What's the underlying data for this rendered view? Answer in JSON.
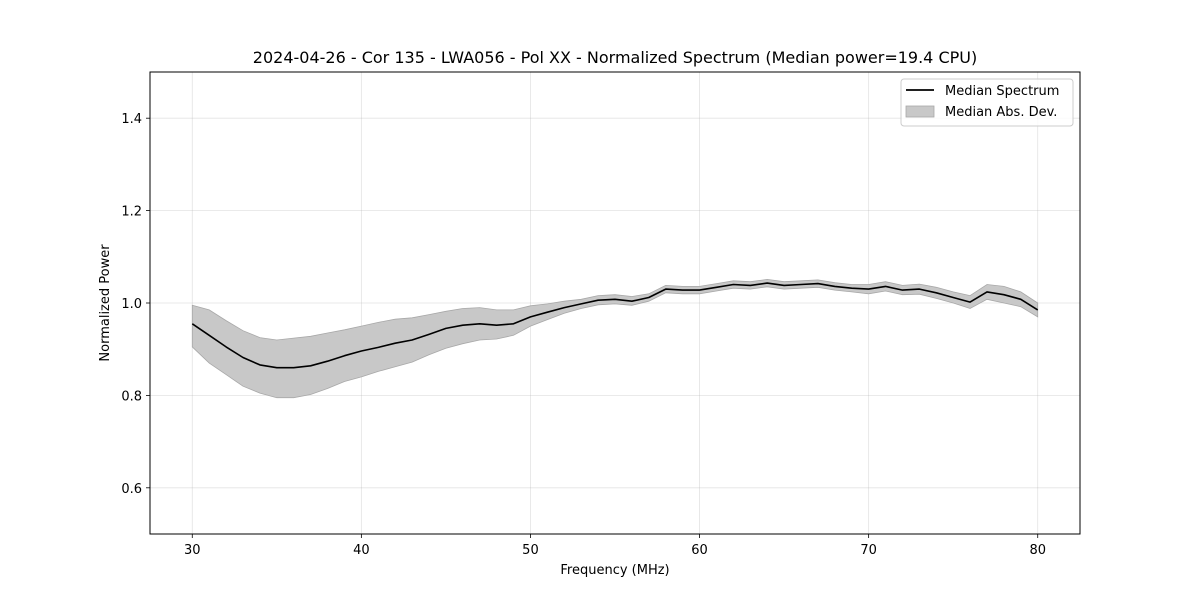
{
  "chart_data": {
    "type": "line",
    "title": "2024-04-26 - Cor 135 - LWA056 - Pol XX - Normalized Spectrum (Median power=19.4 CPU)",
    "xlabel": "Frequency (MHz)",
    "ylabel": "Normalized Power",
    "xlim": [
      27.5,
      82.5
    ],
    "ylim": [
      0.5,
      1.5
    ],
    "xticks": [
      30,
      40,
      50,
      60,
      70,
      80
    ],
    "yticks": [
      0.6,
      0.8,
      1.0,
      1.2,
      1.4
    ],
    "xtick_labels": [
      "30",
      "40",
      "50",
      "60",
      "70",
      "80"
    ],
    "ytick_labels": [
      "0.6",
      "0.8",
      "1.0",
      "1.2",
      "1.4"
    ],
    "grid": true,
    "legend_position": "top-right",
    "series": [
      {
        "name": "Median Spectrum",
        "color": "#000000",
        "x": [
          30,
          31,
          32,
          33,
          34,
          35,
          36,
          37,
          38,
          39,
          40,
          41,
          42,
          43,
          44,
          45,
          46,
          47,
          48,
          49,
          50,
          51,
          52,
          53,
          54,
          55,
          56,
          57,
          58,
          59,
          60,
          61,
          62,
          63,
          64,
          65,
          66,
          67,
          68,
          69,
          70,
          71,
          72,
          73,
          74,
          75,
          76,
          77,
          78,
          79,
          80
        ],
        "y": [
          0.955,
          0.93,
          0.905,
          0.882,
          0.866,
          0.86,
          0.86,
          0.864,
          0.874,
          0.886,
          0.896,
          0.904,
          0.913,
          0.92,
          0.932,
          0.945,
          0.952,
          0.955,
          0.952,
          0.955,
          0.97,
          0.98,
          0.99,
          0.998,
          1.006,
          1.008,
          1.004,
          1.012,
          1.03,
          1.028,
          1.028,
          1.034,
          1.04,
          1.038,
          1.043,
          1.038,
          1.04,
          1.042,
          1.036,
          1.032,
          1.03,
          1.036,
          1.028,
          1.03,
          1.022,
          1.012,
          1.002,
          1.024,
          1.018,
          1.008,
          0.985
        ]
      }
    ],
    "band": {
      "name": "Median Abs. Dev.",
      "color": "#c8c8c8",
      "x": [
        30,
        31,
        32,
        33,
        34,
        35,
        36,
        37,
        38,
        39,
        40,
        41,
        42,
        43,
        44,
        45,
        46,
        47,
        48,
        49,
        50,
        51,
        52,
        53,
        54,
        55,
        56,
        57,
        58,
        59,
        60,
        61,
        62,
        63,
        64,
        65,
        66,
        67,
        68,
        69,
        70,
        71,
        72,
        73,
        74,
        75,
        76,
        77,
        78,
        79,
        80
      ],
      "lower": [
        0.905,
        0.87,
        0.845,
        0.82,
        0.805,
        0.795,
        0.795,
        0.802,
        0.815,
        0.83,
        0.84,
        0.852,
        0.862,
        0.872,
        0.888,
        0.902,
        0.912,
        0.92,
        0.922,
        0.93,
        0.95,
        0.964,
        0.978,
        0.988,
        0.996,
        0.998,
        0.995,
        1.004,
        1.022,
        1.02,
        1.02,
        1.026,
        1.032,
        1.03,
        1.035,
        1.03,
        1.032,
        1.034,
        1.028,
        1.024,
        1.02,
        1.026,
        1.018,
        1.019,
        1.01,
        1.0,
        0.988,
        1.008,
        1.0,
        0.992,
        0.97
      ],
      "upper": [
        0.995,
        0.985,
        0.962,
        0.94,
        0.925,
        0.92,
        0.924,
        0.928,
        0.935,
        0.942,
        0.95,
        0.958,
        0.965,
        0.968,
        0.975,
        0.982,
        0.988,
        0.99,
        0.985,
        0.985,
        0.994,
        0.998,
        1.004,
        1.008,
        1.016,
        1.018,
        1.014,
        1.02,
        1.038,
        1.036,
        1.036,
        1.042,
        1.048,
        1.046,
        1.051,
        1.046,
        1.048,
        1.05,
        1.044,
        1.04,
        1.04,
        1.046,
        1.038,
        1.041,
        1.034,
        1.024,
        1.016,
        1.04,
        1.036,
        1.024,
        1.0
      ]
    }
  }
}
